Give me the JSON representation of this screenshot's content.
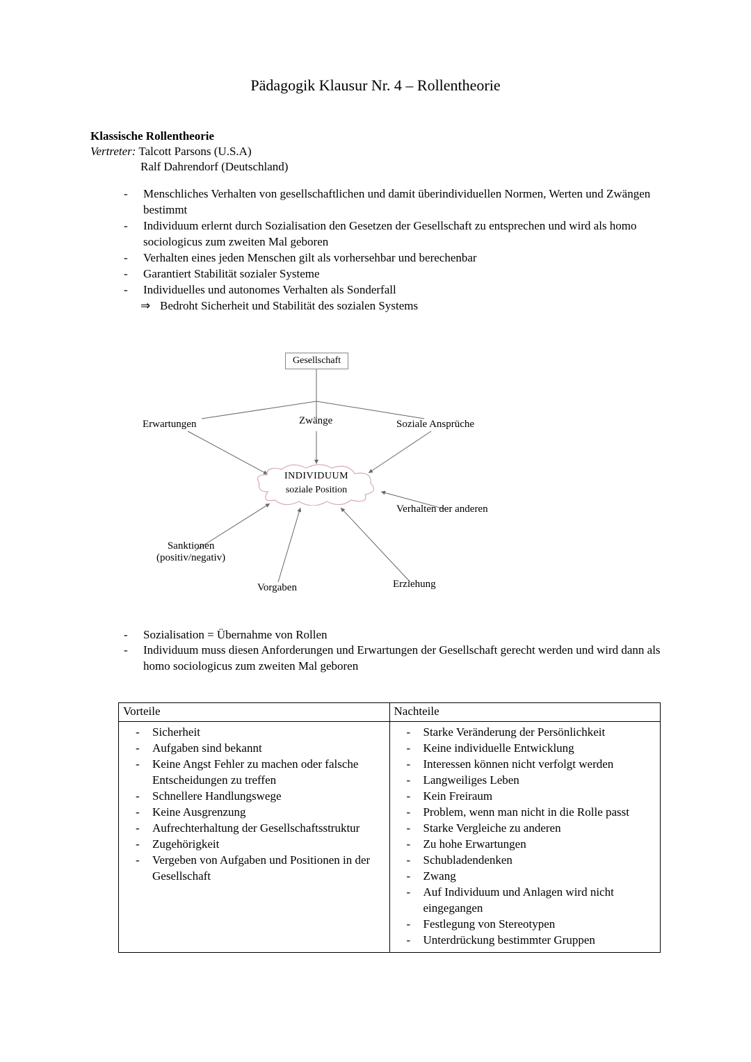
{
  "title": "Pädagogik Klausur Nr. 4 – Rollentheorie",
  "section1": {
    "heading": "Klassische Rollentheorie",
    "vertreter_label": "Vertreter:",
    "vertreter1": "Talcott Parsons (U.S.A)",
    "vertreter2": "Ralf Dahrendorf (Deutschland)"
  },
  "bullets1": [
    "Menschliches Verhalten von gesellschaftlichen und damit überindividuellen Normen, Werten und Zwängen bestimmt",
    "Individuum erlernt durch Sozialisation den Gesetzen der Gesellschaft zu entsprechen und wird als homo sociologicus zum zweiten Mal geboren",
    "Verhalten eines jeden Menschen gilt als vorhersehbar und berechenbar",
    "Garantiert Stabilität sozialer Systeme",
    "Individuelles und autonomes Verhalten als Sonderfall"
  ],
  "subarrow1": "Bedroht Sicherheit und Stabilität des sozialen Systems",
  "diagram": {
    "top_node": "Gesellschaft",
    "zwaenge": "Zwänge",
    "erwartungen": "Erwartungen",
    "soz_ansprueche": "Soziale Ansprüche",
    "center_main": "INDIVIDUUM",
    "center_sub": "soziale Position",
    "verhalten_anderen": "Verhalten der anderen",
    "sanktionen": "Sanktionen",
    "sanktionen_sub": "(positiv/negativ)",
    "vorgaben": "Vorgaben",
    "erziehung": "Erziehung",
    "colors": {
      "line": "#666666",
      "box_border": "#888888",
      "cloud_stroke": "#d8a8b8"
    }
  },
  "bullets2": [
    "Sozialisation = Übernahme von Rollen",
    "Individuum muss diesen Anforderungen und Erwartungen der Gesellschaft gerecht werden und wird dann als homo sociologicus zum zweiten Mal geboren"
  ],
  "table": {
    "head_left": "Vorteile",
    "head_right": "Nachteile",
    "vorteile": [
      "Sicherheit",
      "Aufgaben sind bekannt",
      "Keine Angst Fehler zu machen oder falsche Entscheidungen zu treffen",
      "Schnellere Handlungswege",
      "Keine Ausgrenzung",
      "Aufrechterhaltung der Gesellschaftsstruktur",
      "Zugehörigkeit",
      "Vergeben von Aufgaben und Positionen in der Gesellschaft"
    ],
    "nachteile": [
      "Starke Veränderung der Persönlichkeit",
      "Keine individuelle Entwicklung",
      "Interessen können nicht verfolgt werden",
      "Langweiliges Leben",
      "Kein Freiraum",
      "Problem, wenn man nicht in die Rolle passt",
      "Starke Vergleiche zu anderen",
      "Zu hohe Erwartungen",
      "Schubladendenken",
      "Zwang",
      "Auf Individuum und Anlagen wird nicht eingegangen",
      "Festlegung von Stereotypen",
      "Unterdrückung bestimmter Gruppen"
    ]
  }
}
